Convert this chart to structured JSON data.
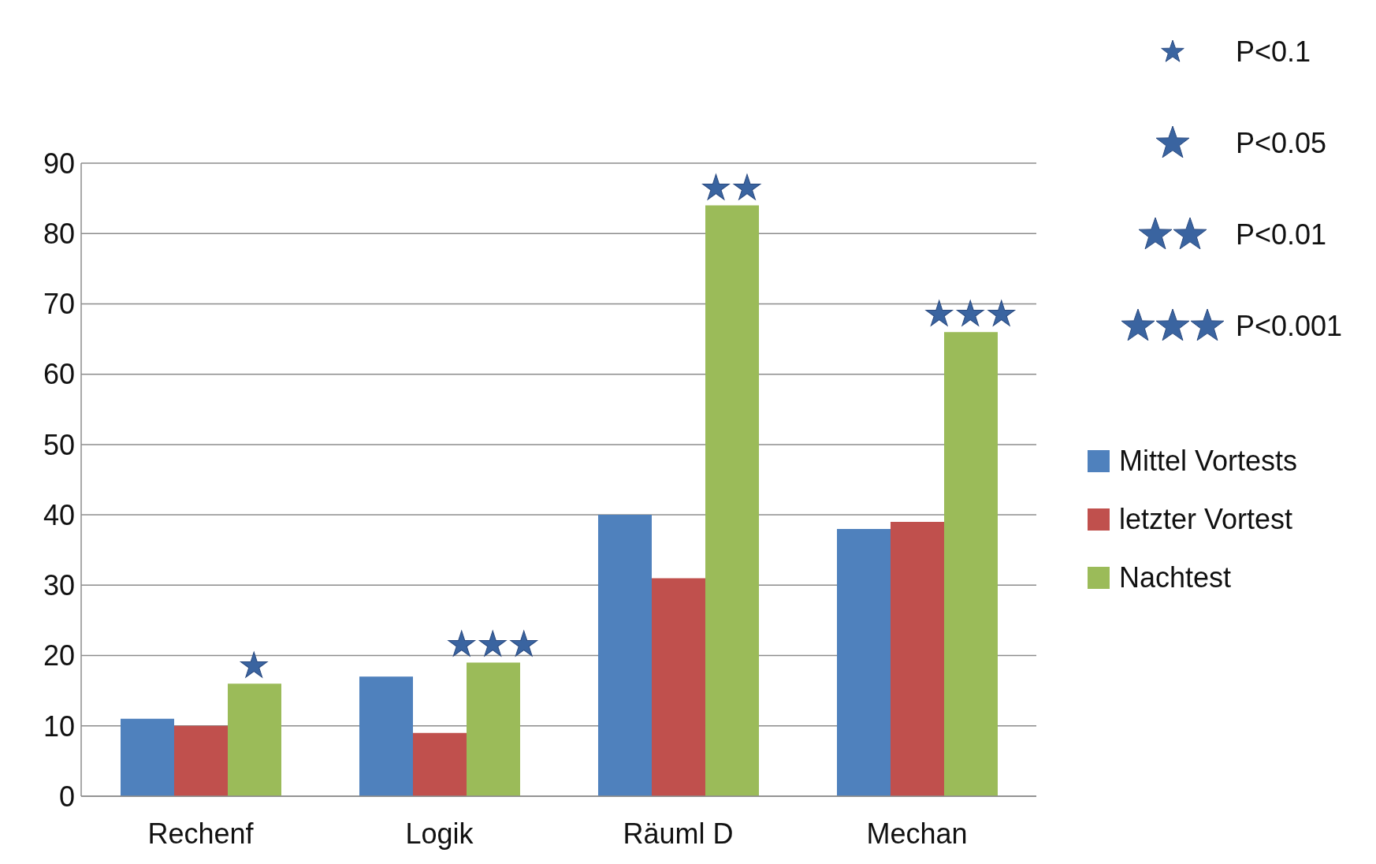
{
  "chart_data": {
    "type": "bar",
    "categories": [
      "Rechenf",
      "Logik",
      "Räuml D",
      "Mechan"
    ],
    "series": [
      {
        "name": "Mittel Vortests",
        "color": "#4f81bd",
        "values": [
          11,
          17,
          40,
          38
        ]
      },
      {
        "name": "letzter Vortest",
        "color": "#c0504d",
        "values": [
          10,
          9,
          31,
          39
        ]
      },
      {
        "name": "Nachtest",
        "color": "#9bbb59",
        "values": [
          16,
          19,
          84,
          66
        ]
      }
    ],
    "ylim": [
      0,
      90
    ],
    "yticks": [
      0,
      10,
      20,
      30,
      40,
      50,
      60,
      70,
      80,
      90
    ],
    "grid": "y",
    "legend": "right",
    "annotations": [
      "★",
      "★★★",
      "★★",
      "★★★",
      "P<0.1",
      "P<0.05",
      "P<0.01",
      "P<0.001"
    ]
  }
}
